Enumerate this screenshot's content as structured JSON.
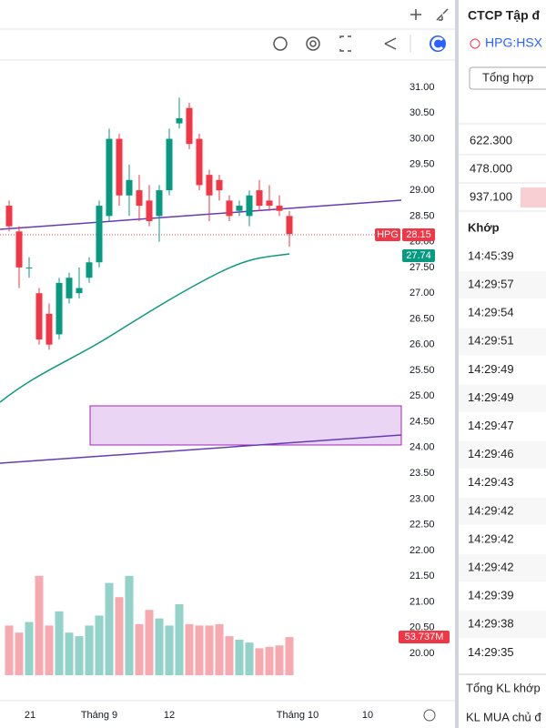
{
  "header": {
    "title": "CTCP Tập đ",
    "symbol": "HPG:HSX",
    "tab": "Tổng hợp"
  },
  "chart": {
    "price_ticks": [
      "31.00",
      "30.50",
      "30.00",
      "29.50",
      "29.00",
      "28.50",
      "28.00",
      "27.50",
      "27.00",
      "26.50",
      "26.00",
      "25.50",
      "25.00",
      "24.50",
      "24.00",
      "23.50",
      "23.00",
      "22.50",
      "22.00",
      "21.50",
      "21.00",
      "20.50",
      "20.00"
    ],
    "x_labels": [
      "21",
      "Tháng 9",
      "12",
      "Tháng 10",
      "10"
    ],
    "symbol_tag": "HPG",
    "last_price": "28.15",
    "ma_value": "27.74",
    "volume_label": "53.737M",
    "candles": [
      [
        28.7,
        28.8,
        28.2,
        28.3
      ],
      [
        28.2,
        28.3,
        27.1,
        27.5
      ],
      [
        27.5,
        27.7,
        27.3,
        27.5
      ],
      [
        27.0,
        27.1,
        26.0,
        26.1
      ],
      [
        26.6,
        26.8,
        25.9,
        26.0
      ],
      [
        26.2,
        27.3,
        26.1,
        27.2
      ],
      [
        26.9,
        27.4,
        26.8,
        27.3
      ],
      [
        27.0,
        27.5,
        26.9,
        27.1
      ],
      [
        27.3,
        27.7,
        27.2,
        27.6
      ],
      [
        27.6,
        28.8,
        27.5,
        28.7
      ],
      [
        28.5,
        30.2,
        28.4,
        30.0
      ],
      [
        30.0,
        30.1,
        28.7,
        28.9
      ],
      [
        28.9,
        29.5,
        28.5,
        29.2
      ],
      [
        29.0,
        29.3,
        28.4,
        28.7
      ],
      [
        28.8,
        29.1,
        28.3,
        28.4
      ],
      [
        28.5,
        29.1,
        28.0,
        29.0
      ],
      [
        29.0,
        30.2,
        28.9,
        30.0
      ],
      [
        30.3,
        30.8,
        30.2,
        30.4
      ],
      [
        30.6,
        30.7,
        29.8,
        29.9
      ],
      [
        30.0,
        30.1,
        29.0,
        29.1
      ],
      [
        29.3,
        29.4,
        28.4,
        28.9
      ],
      [
        29.2,
        29.3,
        28.8,
        29.0
      ],
      [
        28.8,
        28.9,
        28.4,
        28.5
      ],
      [
        28.6,
        28.8,
        28.5,
        28.7
      ],
      [
        28.5,
        29.0,
        28.3,
        28.9
      ],
      [
        29.0,
        29.2,
        28.6,
        28.7
      ],
      [
        28.8,
        29.1,
        28.6,
        28.7
      ],
      [
        28.7,
        28.9,
        28.5,
        28.6
      ],
      [
        28.5,
        28.6,
        27.9,
        28.15
      ]
    ],
    "volumes": [
      70,
      60,
      75,
      140,
      70,
      90,
      60,
      55,
      70,
      84,
      130,
      110,
      140,
      72,
      92,
      80,
      70,
      100,
      72,
      70,
      70,
      72,
      55,
      50,
      46,
      38,
      40,
      42,
      53.737
    ]
  },
  "panel": {
    "stats": [
      "622.300",
      "478.000",
      "937.100"
    ],
    "match_header": "Khớp",
    "times": [
      "14:45:39",
      "14:29:57",
      "14:29:54",
      "14:29:51",
      "14:29:49",
      "14:29:49",
      "14:29:47",
      "14:29:46",
      "14:29:43",
      "14:29:42",
      "14:29:42",
      "14:29:42",
      "14:29:39",
      "14:29:38",
      "14:29:35"
    ],
    "footer": [
      "Tổng KL khớp",
      "KL MUA chủ đ"
    ]
  }
}
